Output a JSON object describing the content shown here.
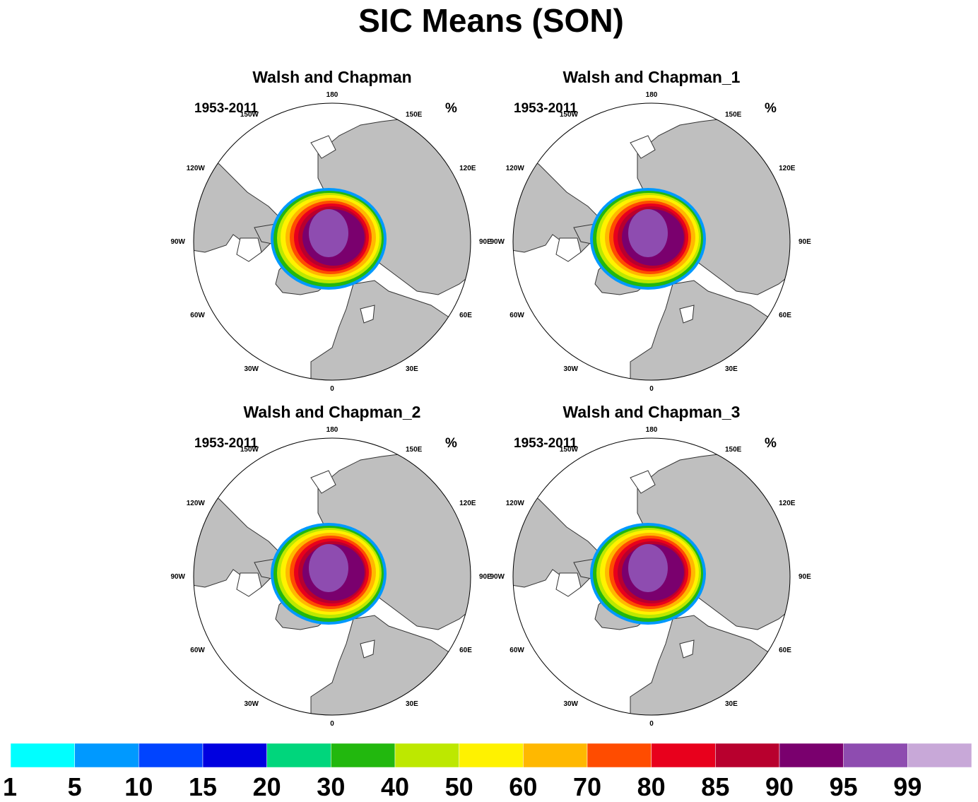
{
  "figure": {
    "title": "SIC Means (SON)"
  },
  "panels": [
    {
      "title": "Walsh and Chapman",
      "period": "1953-2011",
      "units": "%"
    },
    {
      "title": "Walsh and Chapman_1",
      "period": "1953-2011",
      "units": "%"
    },
    {
      "title": "Walsh and Chapman_2",
      "period": "1953-2011",
      "units": "%"
    },
    {
      "title": "Walsh and Chapman_3",
      "period": "1953-2011",
      "units": "%"
    }
  ],
  "longitude_labels": [
    "180",
    "150E",
    "120E",
    "90E",
    "60E",
    "30E",
    "0",
    "30W",
    "60W",
    "90W",
    "120W",
    "150W"
  ],
  "colors": {
    "land": "#bfbfbf",
    "ocean": "#ffffff",
    "coast": "#333333"
  },
  "colorbar": {
    "colors": [
      "#00ffff",
      "#0099ff",
      "#0044ff",
      "#0000e0",
      "#00d67c",
      "#22b80e",
      "#bde800",
      "#fff200",
      "#ffb800",
      "#ff4c00",
      "#e8001c",
      "#b8002e",
      "#7a006e",
      "#8e4cb0",
      "#c8a8d8"
    ],
    "labels": [
      "1",
      "5",
      "10",
      "15",
      "20",
      "30",
      "40",
      "50",
      "60",
      "70",
      "80",
      "85",
      "90",
      "95",
      "99"
    ]
  }
}
